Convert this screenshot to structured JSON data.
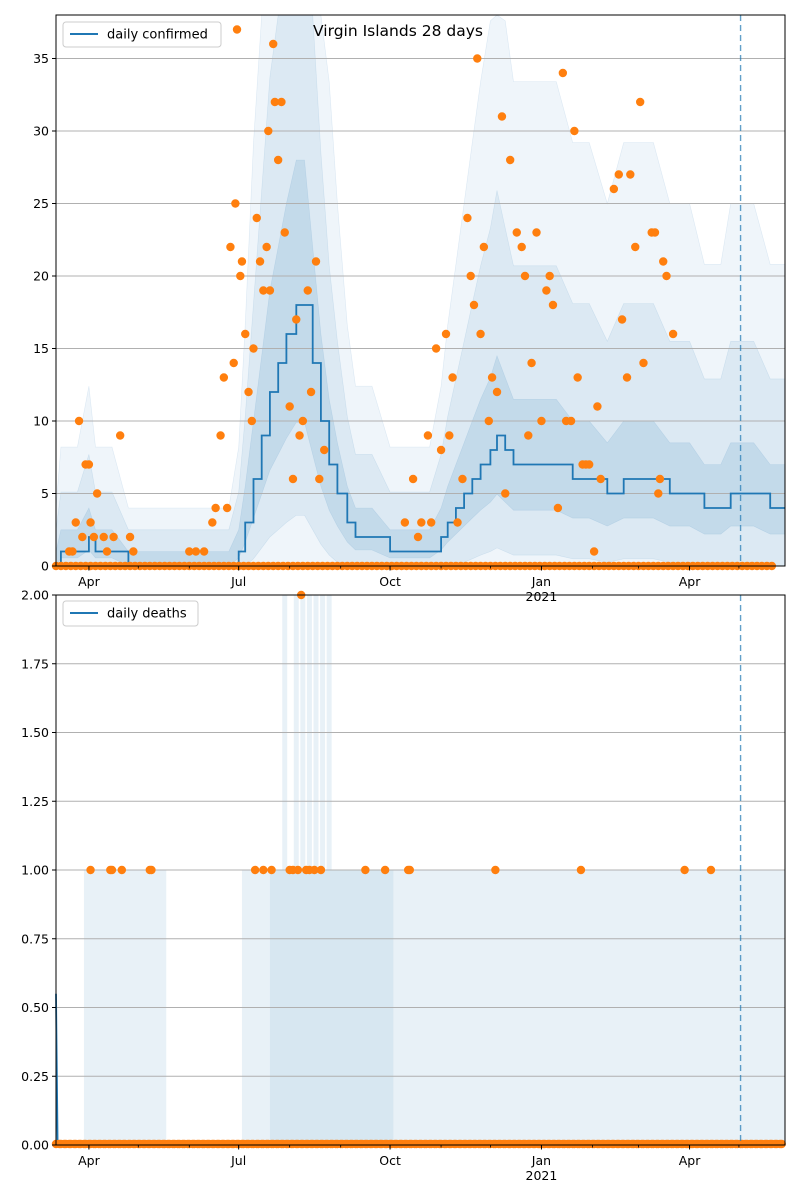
{
  "figure": {
    "title": "Virgin Islands 28 days",
    "colors": {
      "line": "#1f77b4",
      "band": "#1f77b4",
      "points": "#ff7f0e",
      "grid": "#b0b0b0",
      "forecast_line": "#1f77b4"
    }
  },
  "chart_data": [
    {
      "type": "line",
      "panel": "top",
      "title": "Virgin Islands 28 days",
      "legend": [
        "daily confirmed"
      ],
      "legend_position": "upper-left",
      "grid": "horizontal",
      "x_axis": {
        "range": [
          "2020-03-12",
          "2021-05-29"
        ],
        "major_ticks": [
          "Apr",
          "Jul",
          "Oct",
          "Jan\n2021",
          "Apr"
        ],
        "major_tick_dates": [
          "2020-04-01",
          "2020-07-01",
          "2020-10-01",
          "2021-01-01",
          "2021-04-01"
        ]
      },
      "y_axis": {
        "range": [
          0,
          38
        ],
        "ticks": [
          0,
          5,
          10,
          15,
          20,
          25,
          30,
          35
        ]
      },
      "forecast_start": "2021-05-02",
      "series": [
        {
          "name": "daily confirmed",
          "kind": "model-median",
          "x": [
            "2020-03-12",
            "2020-03-15",
            "2020-03-20",
            "2020-03-25",
            "2020-04-01",
            "2020-04-05",
            "2020-04-10",
            "2020-04-15",
            "2020-04-25",
            "2020-05-10",
            "2020-05-20",
            "2020-06-10",
            "2020-06-25",
            "2020-07-01",
            "2020-07-05",
            "2020-07-10",
            "2020-07-15",
            "2020-07-20",
            "2020-07-25",
            "2020-07-30",
            "2020-08-05",
            "2020-08-10",
            "2020-08-15",
            "2020-08-20",
            "2020-08-25",
            "2020-08-30",
            "2020-09-05",
            "2020-09-10",
            "2020-09-20",
            "2020-10-01",
            "2020-10-15",
            "2020-10-25",
            "2020-11-01",
            "2020-11-05",
            "2020-11-10",
            "2020-11-15",
            "2020-11-20",
            "2020-11-25",
            "2020-12-01",
            "2020-12-05",
            "2020-12-10",
            "2020-12-15",
            "2020-12-20",
            "2020-12-25",
            "2021-01-01",
            "2021-01-10",
            "2021-01-20",
            "2021-01-30",
            "2021-02-10",
            "2021-02-20",
            "2021-03-01",
            "2021-03-10",
            "2021-03-20",
            "2021-03-25",
            "2021-04-01",
            "2021-04-10",
            "2021-04-20",
            "2021-04-26",
            "2021-05-01",
            "2021-05-10",
            "2021-05-20",
            "2021-05-29"
          ],
          "y": [
            0,
            1,
            1,
            1,
            2,
            1,
            1,
            1,
            0,
            0,
            0,
            0,
            0,
            1,
            3,
            6,
            9,
            12,
            14,
            16,
            18,
            18,
            14,
            10,
            7,
            5,
            3,
            2,
            2,
            1,
            1,
            1,
            2,
            3,
            4,
            5,
            6,
            7,
            8,
            9,
            8,
            7,
            7,
            7,
            7,
            7,
            6,
            6,
            5,
            6,
            6,
            6,
            5,
            5,
            5,
            4,
            4,
            5,
            5,
            5,
            4,
            4
          ]
        },
        {
          "name": "",
          "kind": "observed",
          "points_top": [
            [
              "2020-03-20",
              1
            ],
            [
              "2020-03-22",
              1
            ],
            [
              "2020-03-24",
              3
            ],
            [
              "2020-03-26",
              10
            ],
            [
              "2020-03-28",
              2
            ],
            [
              "2020-03-30",
              7
            ],
            [
              "2020-04-01",
              7
            ],
            [
              "2020-04-02",
              3
            ],
            [
              "2020-04-04",
              2
            ],
            [
              "2020-04-06",
              5
            ],
            [
              "2020-04-10",
              2
            ],
            [
              "2020-04-12",
              1
            ],
            [
              "2020-04-16",
              2
            ],
            [
              "2020-04-20",
              9
            ],
            [
              "2020-04-26",
              2
            ],
            [
              "2020-04-28",
              1
            ],
            [
              "2020-06-01",
              1
            ],
            [
              "2020-06-05",
              1
            ],
            [
              "2020-06-10",
              1
            ],
            [
              "2020-06-15",
              3
            ],
            [
              "2020-06-17",
              4
            ],
            [
              "2020-06-20",
              9
            ],
            [
              "2020-06-22",
              13
            ],
            [
              "2020-06-24",
              4
            ],
            [
              "2020-06-26",
              22
            ],
            [
              "2020-06-28",
              14
            ],
            [
              "2020-06-29",
              25
            ],
            [
              "2020-06-30",
              37
            ],
            [
              "2020-07-02",
              20
            ],
            [
              "2020-07-03",
              21
            ],
            [
              "2020-07-05",
              16
            ],
            [
              "2020-07-07",
              12
            ],
            [
              "2020-07-09",
              10
            ],
            [
              "2020-07-10",
              15
            ],
            [
              "2020-07-12",
              24
            ],
            [
              "2020-07-14",
              21
            ],
            [
              "2020-07-16",
              19
            ],
            [
              "2020-07-18",
              22
            ],
            [
              "2020-07-19",
              30
            ],
            [
              "2020-07-20",
              19
            ],
            [
              "2020-07-22",
              36
            ],
            [
              "2020-07-23",
              32
            ],
            [
              "2020-07-25",
              28
            ],
            [
              "2020-07-27",
              32
            ],
            [
              "2020-07-29",
              23
            ],
            [
              "2020-08-01",
              11
            ],
            [
              "2020-08-03",
              6
            ],
            [
              "2020-08-05",
              17
            ],
            [
              "2020-08-07",
              9
            ],
            [
              "2020-08-09",
              10
            ],
            [
              "2020-08-12",
              19
            ],
            [
              "2020-08-14",
              12
            ],
            [
              "2020-08-17",
              21
            ],
            [
              "2020-08-19",
              6
            ],
            [
              "2020-08-22",
              8
            ],
            [
              "2020-10-10",
              3
            ],
            [
              "2020-10-15",
              6
            ],
            [
              "2020-10-18",
              2
            ],
            [
              "2020-10-20",
              3
            ],
            [
              "2020-10-24",
              9
            ],
            [
              "2020-10-26",
              3
            ],
            [
              "2020-10-29",
              15
            ],
            [
              "2020-11-01",
              8
            ],
            [
              "2020-11-04",
              16
            ],
            [
              "2020-11-06",
              9
            ],
            [
              "2020-11-08",
              13
            ],
            [
              "2020-11-11",
              3
            ],
            [
              "2020-11-14",
              6
            ],
            [
              "2020-11-17",
              24
            ],
            [
              "2020-11-19",
              20
            ],
            [
              "2020-11-21",
              18
            ],
            [
              "2020-11-23",
              35
            ],
            [
              "2020-11-25",
              16
            ],
            [
              "2020-11-27",
              22
            ],
            [
              "2020-11-30",
              10
            ],
            [
              "2020-12-02",
              13
            ],
            [
              "2020-12-05",
              12
            ],
            [
              "2020-12-08",
              31
            ],
            [
              "2020-12-10",
              5
            ],
            [
              "2020-12-13",
              28
            ],
            [
              "2020-12-17",
              23
            ],
            [
              "2020-12-20",
              22
            ],
            [
              "2020-12-22",
              20
            ],
            [
              "2020-12-24",
              9
            ],
            [
              "2020-12-26",
              14
            ],
            [
              "2020-12-29",
              23
            ],
            [
              "2021-01-01",
              10
            ],
            [
              "2021-01-04",
              19
            ],
            [
              "2021-01-06",
              20
            ],
            [
              "2021-01-08",
              18
            ],
            [
              "2021-01-11",
              4
            ],
            [
              "2021-01-14",
              34
            ],
            [
              "2021-01-16",
              10
            ],
            [
              "2021-01-19",
              10
            ],
            [
              "2021-01-21",
              30
            ],
            [
              "2021-01-23",
              13
            ],
            [
              "2021-01-26",
              7
            ],
            [
              "2021-01-28",
              7
            ],
            [
              "2021-01-30",
              7
            ],
            [
              "2021-02-02",
              1
            ],
            [
              "2021-02-04",
              11
            ],
            [
              "2021-02-06",
              6
            ],
            [
              "2021-02-14",
              26
            ],
            [
              "2021-02-17",
              27
            ],
            [
              "2021-02-19",
              17
            ],
            [
              "2021-02-22",
              13
            ],
            [
              "2021-02-24",
              27
            ],
            [
              "2021-02-27",
              22
            ],
            [
              "2021-03-02",
              32
            ],
            [
              "2021-03-04",
              14
            ],
            [
              "2021-03-09",
              23
            ],
            [
              "2021-03-11",
              23
            ],
            [
              "2021-03-13",
              5
            ],
            [
              "2021-03-14",
              6
            ],
            [
              "2021-03-16",
              21
            ],
            [
              "2021-03-18",
              20
            ],
            [
              "2021-03-22",
              16
            ]
          ]
        }
      ]
    },
    {
      "type": "line",
      "panel": "bottom",
      "legend": [
        "daily deaths"
      ],
      "legend_position": "upper-left",
      "grid": "horizontal",
      "x_axis": {
        "range": [
          "2020-03-12",
          "2021-05-29"
        ],
        "major_ticks": [
          "Apr",
          "Jul",
          "Oct",
          "Jan\n2021",
          "Apr"
        ],
        "major_tick_dates": [
          "2020-04-01",
          "2020-07-01",
          "2020-10-01",
          "2021-01-01",
          "2021-04-01"
        ]
      },
      "y_axis": {
        "range": [
          0,
          2
        ],
        "ticks": [
          "0.00",
          "0.25",
          "0.50",
          "0.75",
          "1.00",
          "1.25",
          "1.50",
          "1.75",
          "2.00"
        ]
      },
      "forecast_start": "2021-05-02",
      "series": [
        {
          "name": "daily deaths",
          "kind": "model-median",
          "x": [
            "2020-03-12",
            "2020-03-13",
            "2021-05-29"
          ],
          "y": [
            0.55,
            0,
            0
          ]
        },
        {
          "name": "",
          "kind": "observed",
          "points": [
            [
              "2020-04-02",
              1
            ],
            [
              "2020-04-14",
              1
            ],
            [
              "2020-04-15",
              1
            ],
            [
              "2020-04-21",
              1
            ],
            [
              "2020-05-08",
              1
            ],
            [
              "2020-05-09",
              1
            ],
            [
              "2020-07-11",
              1
            ],
            [
              "2020-07-16",
              1
            ],
            [
              "2020-07-21",
              1
            ],
            [
              "2020-08-01",
              1
            ],
            [
              "2020-08-03",
              1
            ],
            [
              "2020-08-06",
              1
            ],
            [
              "2020-08-08",
              2
            ],
            [
              "2020-08-11",
              1
            ],
            [
              "2020-08-13",
              1
            ],
            [
              "2020-08-16",
              1
            ],
            [
              "2020-08-20",
              1
            ],
            [
              "2020-09-16",
              1
            ],
            [
              "2020-09-28",
              1
            ],
            [
              "2020-10-12",
              1
            ],
            [
              "2020-10-13",
              1
            ],
            [
              "2020-12-04",
              1
            ],
            [
              "2021-01-25",
              1
            ],
            [
              "2021-03-29",
              1
            ],
            [
              "2021-04-14",
              1
            ]
          ]
        }
      ]
    }
  ]
}
